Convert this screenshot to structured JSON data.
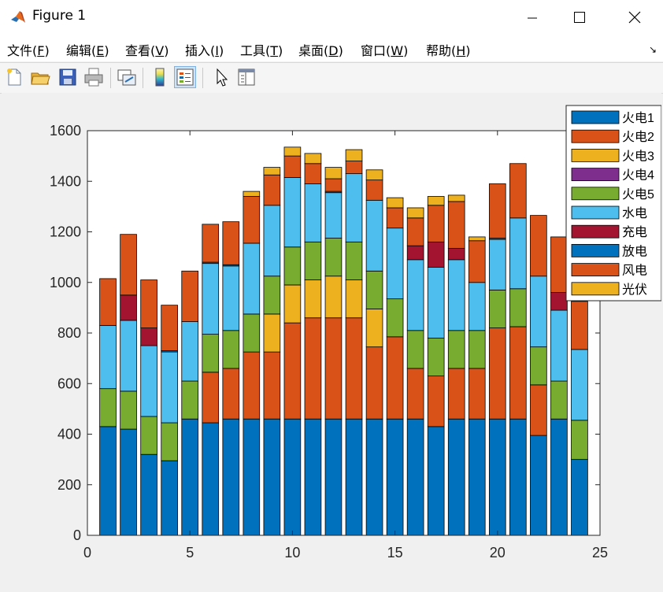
{
  "window": {
    "title": "Figure 1"
  },
  "menu": [
    {
      "text": "文件(",
      "mn": "F",
      "end": ")"
    },
    {
      "text": "编辑(",
      "mn": "E",
      "end": ")"
    },
    {
      "text": "查看(",
      "mn": "V",
      "end": ")"
    },
    {
      "text": "插入(",
      "mn": "I",
      "end": ")"
    },
    {
      "text": "工具(",
      "mn": "T",
      "end": ")"
    },
    {
      "text": "桌面(",
      "mn": "D",
      "end": ")"
    },
    {
      "text": "窗口(",
      "mn": "W",
      "end": ")"
    },
    {
      "text": "帮助(",
      "mn": "H",
      "end": ")"
    }
  ],
  "toolbar": [
    "new-figure",
    "open-file",
    "save",
    "print",
    "link-plot",
    "insert-colorbar",
    "insert-legend",
    "edit-plot",
    "property-inspector"
  ],
  "chart_data": {
    "type": "bar",
    "stacked": true,
    "x": [
      1,
      2,
      3,
      4,
      5,
      6,
      7,
      8,
      9,
      10,
      11,
      12,
      13,
      14,
      15,
      16,
      17,
      18,
      19,
      20,
      21,
      22,
      23,
      24
    ],
    "xlim": [
      0,
      25
    ],
    "ylim": [
      0,
      1600
    ],
    "xticks": [
      0,
      5,
      10,
      15,
      20,
      25
    ],
    "yticks": [
      0,
      200,
      400,
      600,
      800,
      1000,
      1200,
      1400,
      1600
    ],
    "legend_position": "top-right outside",
    "series": [
      {
        "name": "火电1",
        "color": "#0072bd",
        "values": [
          430,
          420,
          320,
          295,
          460,
          445,
          460,
          460,
          460,
          460,
          460,
          460,
          460,
          460,
          460,
          460,
          430,
          460,
          460,
          460,
          460,
          395,
          460,
          300
        ]
      },
      {
        "name": "火电2",
        "color": "#d95319",
        "values": [
          0,
          0,
          0,
          0,
          0,
          200,
          200,
          265,
          265,
          380,
          400,
          400,
          400,
          285,
          325,
          200,
          200,
          200,
          200,
          360,
          365,
          200,
          0,
          0
        ]
      },
      {
        "name": "火电3",
        "color": "#edb120",
        "values": [
          0,
          0,
          0,
          0,
          0,
          0,
          0,
          0,
          150,
          150,
          150,
          165,
          150,
          150,
          0,
          0,
          0,
          0,
          0,
          0,
          0,
          0,
          0,
          0
        ]
      },
      {
        "name": "火电4",
        "color": "#7e2f8e",
        "values": [
          0,
          0,
          0,
          0,
          0,
          0,
          0,
          0,
          0,
          0,
          0,
          0,
          0,
          0,
          0,
          0,
          0,
          0,
          0,
          0,
          0,
          0,
          0,
          0
        ]
      },
      {
        "name": "火电5",
        "color": "#77ac30",
        "values": [
          150,
          150,
          150,
          150,
          150,
          150,
          150,
          150,
          150,
          150,
          150,
          150,
          150,
          150,
          150,
          150,
          150,
          150,
          150,
          150,
          150,
          150,
          150,
          155
        ]
      },
      {
        "name": "水电",
        "color": "#4dbeee",
        "values": [
          250,
          280,
          280,
          280,
          235,
          280,
          255,
          280,
          280,
          275,
          230,
          180,
          270,
          280,
          280,
          280,
          280,
          280,
          190,
          200,
          280,
          280,
          280,
          280
        ]
      },
      {
        "name": "充电",
        "color": "#a2142f",
        "values": [
          0,
          100,
          70,
          0,
          0,
          0,
          0,
          0,
          0,
          0,
          0,
          0,
          0,
          0,
          0,
          55,
          100,
          45,
          0,
          0,
          0,
          0,
          70,
          0
        ]
      },
      {
        "name": "放电",
        "color": "#0072bd",
        "values": [
          0,
          0,
          0,
          5,
          0,
          5,
          5,
          0,
          0,
          0,
          0,
          5,
          0,
          0,
          0,
          0,
          0,
          0,
          0,
          5,
          0,
          0,
          0,
          0
        ]
      },
      {
        "name": "风电",
        "color": "#d95319",
        "values": [
          185,
          240,
          190,
          180,
          200,
          150,
          170,
          185,
          120,
          85,
          80,
          50,
          50,
          80,
          80,
          110,
          145,
          185,
          165,
          215,
          215,
          240,
          220,
          190
        ]
      },
      {
        "name": "光伏",
        "color": "#edb120",
        "values": [
          0,
          0,
          0,
          0,
          0,
          0,
          0,
          20,
          30,
          35,
          40,
          45,
          45,
          40,
          40,
          40,
          35,
          25,
          15,
          0,
          0,
          0,
          0,
          0
        ]
      }
    ]
  }
}
